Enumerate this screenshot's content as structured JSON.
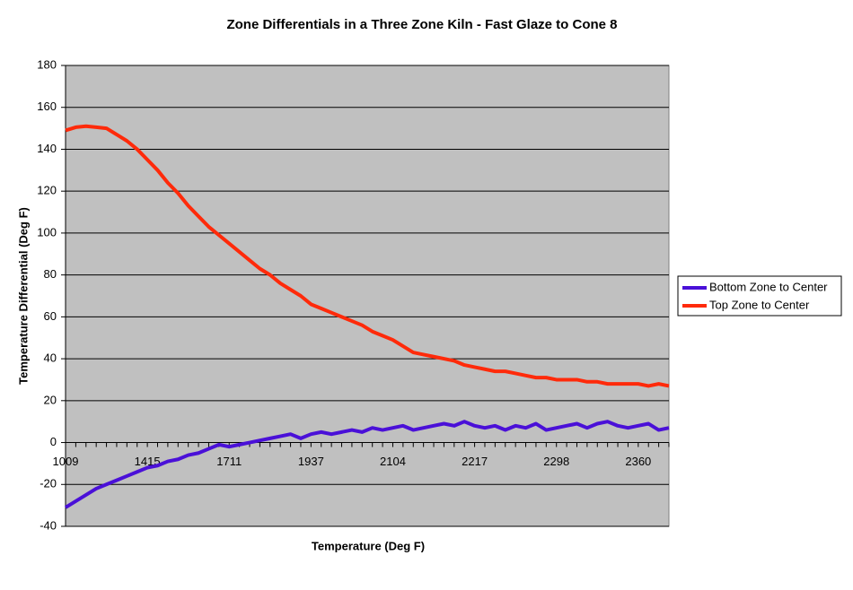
{
  "chart_data": {
    "type": "line",
    "title": "Zone Differentials in a Three Zone Kiln - Fast Glaze to Cone 8",
    "x_label": "Temperature (Deg F)",
    "y_label": "Temperature Differential (Deg F)",
    "categories": [
      "1009",
      null,
      null,
      null,
      null,
      null,
      null,
      null,
      "1415",
      null,
      null,
      null,
      null,
      null,
      null,
      null,
      "1711",
      null,
      null,
      null,
      null,
      null,
      null,
      null,
      "1937",
      null,
      null,
      null,
      null,
      null,
      null,
      null,
      "2104",
      null,
      null,
      null,
      null,
      null,
      null,
      null,
      "2217",
      null,
      null,
      null,
      null,
      null,
      null,
      null,
      "2298",
      null,
      null,
      null,
      null,
      null,
      null,
      null,
      "2360",
      null,
      null,
      null
    ],
    "series": [
      {
        "name": "Bottom Zone to Center",
        "color": "#4a10d8",
        "values": [
          -31,
          -28,
          -25,
          -22,
          -20,
          -18,
          -16,
          -14,
          -12,
          -11,
          -9,
          -8,
          -6,
          -5,
          -3,
          -1,
          -2,
          -1,
          0,
          1,
          2,
          3,
          4,
          2,
          4,
          5,
          4,
          5,
          6,
          5,
          7,
          6,
          7,
          8,
          6,
          7,
          8,
          9,
          8,
          10,
          8,
          7,
          8,
          6,
          8,
          7,
          9,
          6,
          7,
          8,
          9,
          7,
          9,
          10,
          8,
          7,
          8,
          9,
          6,
          7
        ]
      },
      {
        "name": "Top Zone to Center",
        "color": "#ff2a0a",
        "values": [
          149,
          150.5,
          151,
          150.5,
          150,
          147,
          144,
          140,
          135,
          130,
          124,
          119,
          113,
          108,
          103,
          99,
          95,
          91,
          87,
          83,
          80,
          76,
          73,
          70,
          66,
          64,
          62,
          60,
          58,
          56,
          53,
          51,
          49,
          46,
          43,
          42,
          41,
          40,
          39,
          37,
          36,
          35,
          34,
          34,
          33,
          32,
          31,
          31,
          30,
          30,
          30,
          29,
          29,
          28,
          28,
          28,
          28,
          27,
          28,
          27
        ]
      }
    ],
    "ylim": [
      -40,
      180
    ],
    "yticks": [
      -40,
      -20,
      0,
      20,
      40,
      60,
      80,
      100,
      120,
      140,
      160,
      180
    ],
    "grid": true,
    "legend": "right"
  }
}
